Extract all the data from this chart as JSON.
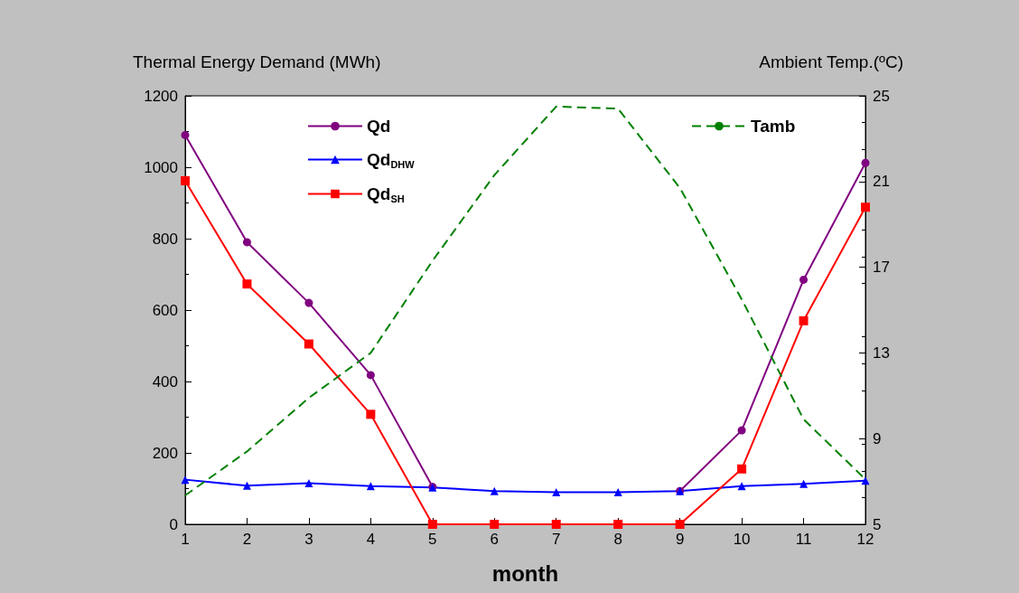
{
  "chart_data": {
    "type": "line",
    "xlabel": "month",
    "ylabel": "Thermal Energy Demand (MWh)",
    "y2label": "Ambient Temp.(ºC)",
    "x": [
      1,
      2,
      3,
      4,
      5,
      6,
      7,
      8,
      9,
      10,
      11,
      12
    ],
    "series": [
      {
        "name": "Qd",
        "color": "#800080",
        "marker": "circle",
        "line_style": "solid",
        "values": [
          1090,
          790,
          620,
          418,
          105,
          null,
          null,
          null,
          93,
          263,
          685,
          1012
        ]
      },
      {
        "name": "Qd$_{DHW}$",
        "color": "#0000ff",
        "marker": "triangle",
        "line_style": "solid",
        "values": [
          125,
          108,
          115,
          107,
          103,
          93,
          90,
          90,
          93,
          107,
          113,
          122
        ]
      },
      {
        "name": "Qd$_{SH}$",
        "color": "#ff0000",
        "marker": "square",
        "line_style": "solid",
        "values": [
          962,
          673,
          505,
          308,
          0,
          0,
          0,
          0,
          0,
          155,
          570,
          888
        ]
      },
      {
        "name": "Tamb",
        "color": "#008000",
        "marker": "none",
        "line_style": "dashed",
        "axis": "y2",
        "values": [
          6.35,
          8.4,
          10.9,
          13.0,
          17.3,
          21.3,
          24.5,
          24.4,
          20.7,
          15.5,
          9.9,
          7.1
        ]
      }
    ],
    "xlim": [
      1,
      12
    ],
    "xticks": [
      1,
      2,
      3,
      4,
      5,
      6,
      7,
      8,
      9,
      10,
      11,
      12
    ],
    "ylim": [
      0,
      1200
    ],
    "yticks": [
      0,
      200,
      400,
      600,
      800,
      1000,
      1200
    ],
    "y2lim": [
      5,
      25
    ],
    "y2ticks": [
      5,
      9,
      13,
      17,
      21,
      25
    ],
    "grid": false,
    "legend": "top"
  }
}
